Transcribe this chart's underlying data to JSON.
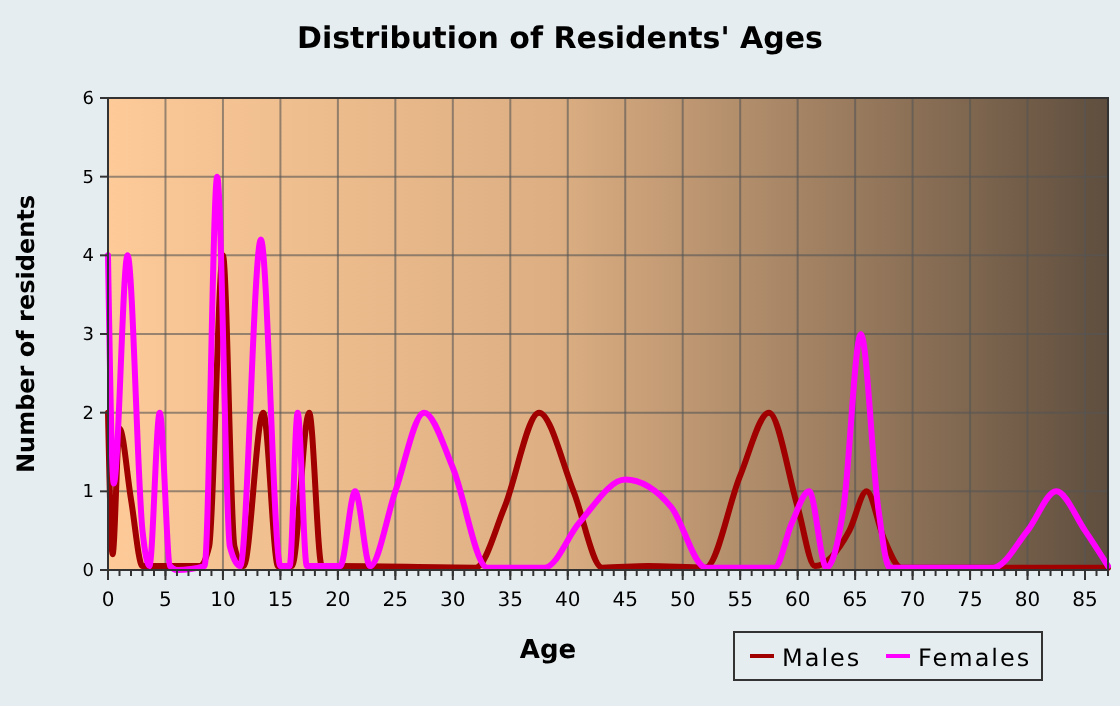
{
  "chart_data": {
    "type": "line",
    "title": "Distribution of Residents' Ages",
    "xlabel": "Age",
    "ylabel": "Number of residents",
    "xlim": [
      0,
      87
    ],
    "xticks": [
      0,
      5,
      10,
      15,
      20,
      25,
      30,
      35,
      40,
      45,
      50,
      55,
      60,
      65,
      70,
      75,
      80,
      85
    ],
    "ylim": [
      0,
      6
    ],
    "yticks": [
      0,
      1,
      2,
      3,
      4,
      5,
      6
    ],
    "grid": true,
    "legend": "bottom right",
    "line_style": "solid",
    "marker": "none",
    "series": [
      {
        "name": "Males",
        "color": "#a00000",
        "x": [
          0,
          0.4,
          1,
          2,
          3,
          4,
          8,
          8.8,
          10,
          11,
          11.8,
          13.5,
          14.8,
          16,
          17.5,
          18.6,
          20,
          32,
          34.5,
          37.5,
          40.5,
          43,
          47,
          52,
          55,
          57.5,
          60,
          61.5,
          64.5,
          66,
          67.5,
          69,
          87
        ],
        "values": [
          2,
          0.2,
          1.8,
          0.9,
          0.05,
          0.05,
          0.05,
          0.3,
          4,
          0.3,
          0.05,
          2,
          0.05,
          0.05,
          2,
          0.05,
          0.05,
          0.03,
          0.8,
          2,
          1,
          0.03,
          0.05,
          0.03,
          1.2,
          2,
          0.8,
          0.05,
          0.5,
          1,
          0.4,
          0.03,
          0.03
        ]
      },
      {
        "name": "Females",
        "color": "#ff00ff",
        "x": [
          0,
          0.5,
          1.7,
          3,
          3.6,
          4.5,
          5.4,
          6,
          8.4,
          9.5,
          10.6,
          11.5,
          13.3,
          15,
          15.8,
          16.5,
          17.3,
          20.2,
          21.5,
          22.8,
          25,
          27.5,
          30,
          33,
          38,
          41,
          45,
          49,
          52,
          58,
          59.5,
          61,
          62.5,
          64,
          65.5,
          67,
          68,
          77,
          80,
          82.5,
          85,
          87
        ],
        "values": [
          4,
          1.1,
          4,
          0.5,
          0.05,
          2,
          0.05,
          0,
          0.05,
          5,
          0.3,
          0.05,
          4.2,
          0.05,
          0.05,
          2,
          0.05,
          0.05,
          1,
          0.05,
          1,
          2,
          1.3,
          0.03,
          0.03,
          0.6,
          1.15,
          0.8,
          0.03,
          0.03,
          0.6,
          1,
          0.03,
          0.8,
          3,
          0.8,
          0.03,
          0.03,
          0.5,
          1,
          0.5,
          0.05
        ]
      }
    ]
  }
}
